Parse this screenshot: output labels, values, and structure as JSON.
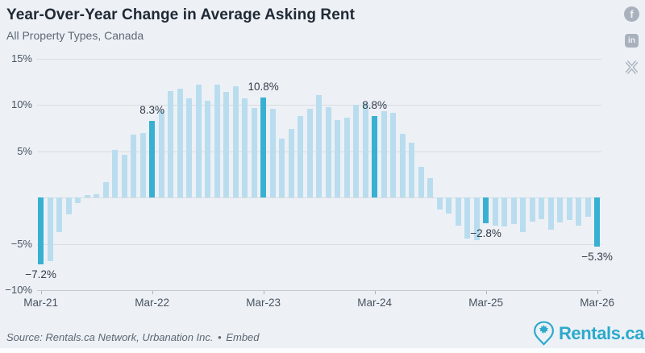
{
  "header": {
    "title": "Year-Over-Year Change in Average Asking Rent",
    "subtitle": "All Property Types, Canada"
  },
  "social": {
    "facebook_label": "f",
    "linkedin_label": "in"
  },
  "chart_data": {
    "type": "bar",
    "title": "Year-Over-Year Change in Average Asking Rent",
    "subtitle": "All Property Types, Canada",
    "unit": "%",
    "grid": true,
    "ylim": [
      -10,
      15
    ],
    "categories": [
      "Mar-21",
      "Apr-21",
      "May-21",
      "Jun-21",
      "Jul-21",
      "Aug-21",
      "Sep-21",
      "Oct-21",
      "Nov-21",
      "Dec-21",
      "Jan-22",
      "Feb-22",
      "Mar-22",
      "Apr-22",
      "May-22",
      "Jun-22",
      "Jul-22",
      "Aug-22",
      "Sep-22",
      "Oct-22",
      "Nov-22",
      "Dec-22",
      "Jan-23",
      "Feb-23",
      "Mar-23",
      "Apr-23",
      "May-23",
      "Jun-23",
      "Jul-23",
      "Aug-23",
      "Sep-23",
      "Oct-23",
      "Nov-23",
      "Dec-23",
      "Jan-24",
      "Feb-24",
      "Mar-24",
      "Apr-24",
      "May-24",
      "Jun-24",
      "Jul-24",
      "Aug-24",
      "Sep-24",
      "Oct-24",
      "Nov-24",
      "Dec-24",
      "Jan-25",
      "Feb-25",
      "Mar-25",
      "Apr-25",
      "May-25",
      "Jun-25",
      "Jul-25",
      "Aug-25",
      "Sep-25",
      "Oct-25",
      "Nov-25",
      "Dec-25",
      "Jan-26",
      "Feb-26",
      "Mar-26"
    ],
    "values": [
      -7.2,
      -6.9,
      -3.7,
      -1.8,
      -0.6,
      0.3,
      0.4,
      1.7,
      5.2,
      4.6,
      6.8,
      7.0,
      8.3,
      9.4,
      11.5,
      11.8,
      10.7,
      12.2,
      10.5,
      12.2,
      11.4,
      12.0,
      10.7,
      9.7,
      10.8,
      9.6,
      6.4,
      7.4,
      8.8,
      9.6,
      11.1,
      9.8,
      8.4,
      8.6,
      10.0,
      10.2,
      8.8,
      9.3,
      9.2,
      6.9,
      5.9,
      3.3,
      2.1,
      -1.3,
      -1.7,
      -3.0,
      -4.4,
      -4.6,
      -2.8,
      -3.0,
      -3.1,
      -2.9,
      -3.7,
      -2.6,
      -2.3,
      -3.5,
      -2.7,
      -2.4,
      -3.0,
      -2.1,
      -5.3
    ],
    "highlight_indices": [
      0,
      12,
      24,
      36,
      48,
      60
    ],
    "annotations": [
      {
        "index": 0,
        "label": "−7.2%"
      },
      {
        "index": 12,
        "label": "8.3%"
      },
      {
        "index": 24,
        "label": "10.8%"
      },
      {
        "index": 36,
        "label": "8.8%"
      },
      {
        "index": 48,
        "label": "−2.8%"
      },
      {
        "index": 60,
        "label": "−5.3%"
      }
    ],
    "xticks": [
      {
        "index": 0,
        "label": "Mar-21"
      },
      {
        "index": 12,
        "label": "Mar-22"
      },
      {
        "index": 24,
        "label": "Mar-23"
      },
      {
        "index": 36,
        "label": "Mar-24"
      },
      {
        "index": 48,
        "label": "Mar-25"
      },
      {
        "index": 60,
        "label": "Mar-26"
      }
    ],
    "yticks": [
      {
        "value": 15,
        "label": "15%"
      },
      {
        "value": 10,
        "label": "10%"
      },
      {
        "value": 5,
        "label": "5%"
      },
      {
        "value": 0,
        "label": ""
      },
      {
        "value": -5,
        "label": "−5%"
      },
      {
        "value": -10,
        "label": "−10%"
      }
    ],
    "colors": {
      "bar": "#b9ddee",
      "highlight": "#38b0d2",
      "gridline": "#d9dde2",
      "axis": "#c3c9d0",
      "background": "#edf1f6"
    },
    "legend": "none"
  },
  "footer": {
    "source": "Source: Rentals.ca Network, Urbanation Inc.",
    "bullet": "•",
    "embed_label": "Embed",
    "logo_text": "Rentals.ca",
    "logo_color": "#2ba9cc"
  }
}
